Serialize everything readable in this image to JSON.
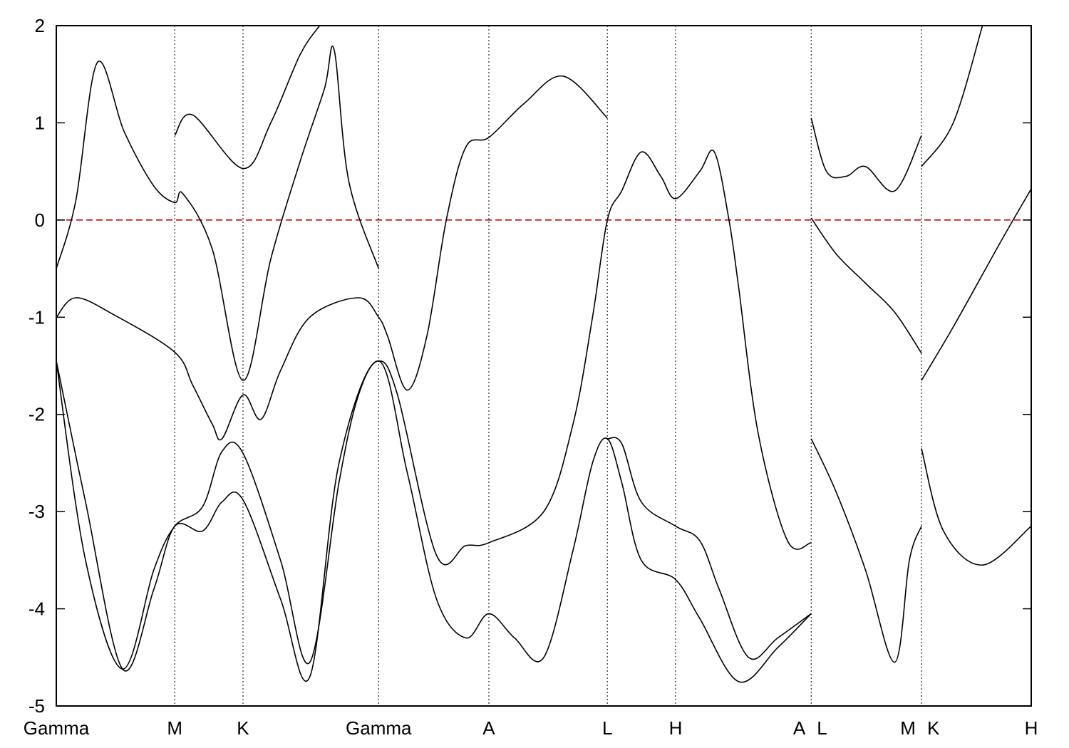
{
  "chart_data": {
    "type": "line",
    "title": "",
    "xlabel": "",
    "ylabel": "",
    "xlim": [
      0,
      1.0
    ],
    "ylim": [
      -5,
      2
    ],
    "yticks": [
      2,
      1,
      0,
      -1,
      -2,
      -3,
      -4,
      -5
    ],
    "grid": false,
    "legend": "none",
    "high_symmetry_points": [
      {
        "label": "Gamma",
        "x": 0.0
      },
      {
        "label": "M",
        "x": 0.1215
      },
      {
        "label": "K",
        "x": 0.1915
      },
      {
        "label": "Gamma",
        "x": 0.3306
      },
      {
        "label": "A",
        "x": 0.4437
      },
      {
        "label": "L",
        "x": 0.5652
      },
      {
        "label": "H",
        "x": 0.6352
      },
      {
        "label": "A",
        "x": 0.7743
      },
      {
        "label": "L",
        "x": 0.7743
      },
      {
        "label": "M",
        "x": 0.8874
      },
      {
        "label": "K",
        "x": 0.8874
      },
      {
        "label": "H",
        "x": 1.0
      }
    ],
    "fermi_level": {
      "y": 0,
      "color": "#cc0000",
      "style": "dashed"
    },
    "series": [
      {
        "values": [
          [
            0.0,
            -0.5
          ],
          [
            0.02,
            0.2
          ],
          [
            0.042,
            1.62
          ],
          [
            0.07,
            0.9
          ],
          [
            0.1,
            0.35
          ],
          [
            0.1215,
            0.18
          ],
          [
            0.13,
            0.27
          ],
          [
            0.16,
            -0.3
          ],
          [
            0.1915,
            -1.65
          ],
          [
            0.22,
            -0.4
          ],
          [
            0.25,
            0.6
          ],
          [
            0.275,
            1.35
          ],
          [
            0.285,
            1.75
          ],
          [
            0.3,
            0.4
          ],
          [
            0.3306,
            -0.5
          ]
        ]
      },
      {
        "values": [
          [
            0.0,
            -1.0
          ],
          [
            0.02,
            -0.8
          ],
          [
            0.06,
            -0.98
          ],
          [
            0.1215,
            -1.36
          ],
          [
            0.14,
            -1.7
          ],
          [
            0.16,
            -2.1
          ],
          [
            0.17,
            -2.25
          ],
          [
            0.1915,
            -1.8
          ],
          [
            0.21,
            -2.05
          ],
          [
            0.23,
            -1.55
          ],
          [
            0.26,
            -1.0
          ],
          [
            0.31,
            -0.8
          ],
          [
            0.3306,
            -1.0
          ],
          [
            0.34,
            -1.2
          ],
          [
            0.36,
            -1.75
          ],
          [
            0.38,
            -1.2
          ],
          [
            0.4,
            0.0
          ],
          [
            0.42,
            0.75
          ],
          [
            0.4437,
            0.85
          ],
          [
            0.48,
            1.2
          ],
          [
            0.52,
            1.48
          ],
          [
            0.5652,
            1.05
          ]
        ]
      },
      {
        "values": [
          [
            0.0,
            -1.45
          ],
          [
            0.03,
            -3.5
          ],
          [
            0.068,
            -4.62
          ],
          [
            0.1,
            -3.6
          ],
          [
            0.1215,
            -3.15
          ],
          [
            0.15,
            -2.95
          ],
          [
            0.17,
            -2.38
          ],
          [
            0.1915,
            -2.4
          ],
          [
            0.23,
            -3.5
          ],
          [
            0.26,
            -4.55
          ],
          [
            0.29,
            -2.7
          ],
          [
            0.31,
            -1.8
          ],
          [
            0.3306,
            -1.45
          ],
          [
            0.35,
            -1.8
          ],
          [
            0.39,
            -3.45
          ],
          [
            0.42,
            -3.35
          ],
          [
            0.4437,
            -3.32
          ],
          [
            0.5,
            -3.0
          ],
          [
            0.53,
            -2.1
          ],
          [
            0.55,
            -1.0
          ],
          [
            0.5652,
            0.0
          ],
          [
            0.58,
            0.3
          ],
          [
            0.6,
            0.7
          ],
          [
            0.62,
            0.45
          ],
          [
            0.6352,
            0.22
          ],
          [
            0.66,
            0.5
          ],
          [
            0.675,
            0.7
          ],
          [
            0.69,
            0.0
          ],
          [
            0.7,
            -0.7
          ],
          [
            0.72,
            -2.2
          ],
          [
            0.75,
            -3.3
          ],
          [
            0.7743,
            -3.32
          ]
        ]
      },
      {
        "values": [
          [
            0.0,
            -1.45
          ],
          [
            0.03,
            -2.9
          ],
          [
            0.068,
            -4.62
          ],
          [
            0.1,
            -3.8
          ],
          [
            0.1215,
            -3.15
          ],
          [
            0.15,
            -3.2
          ],
          [
            0.17,
            -2.9
          ],
          [
            0.1915,
            -2.88
          ],
          [
            0.23,
            -3.9
          ],
          [
            0.26,
            -4.7
          ],
          [
            0.29,
            -2.5
          ],
          [
            0.3306,
            -1.45
          ],
          [
            0.36,
            -2.6
          ],
          [
            0.39,
            -3.9
          ],
          [
            0.42,
            -4.3
          ],
          [
            0.4437,
            -4.05
          ],
          [
            0.47,
            -4.3
          ],
          [
            0.5,
            -4.5
          ],
          [
            0.53,
            -3.4
          ],
          [
            0.55,
            -2.5
          ],
          [
            0.5652,
            -2.25
          ],
          [
            0.58,
            -2.7
          ],
          [
            0.6,
            -3.5
          ],
          [
            0.6352,
            -3.7
          ],
          [
            0.66,
            -4.1
          ],
          [
            0.7,
            -4.75
          ],
          [
            0.74,
            -4.4
          ],
          [
            0.7743,
            -4.05
          ]
        ]
      },
      {
        "values": [
          [
            0.1215,
            0.87
          ],
          [
            0.14,
            1.08
          ],
          [
            0.1915,
            0.53
          ],
          [
            0.22,
            1.0
          ],
          [
            0.25,
            1.7
          ],
          [
            0.27,
            2.0
          ]
        ]
      },
      {
        "values": [
          [
            0.5652,
            -2.25
          ],
          [
            0.58,
            -2.3
          ],
          [
            0.6,
            -2.9
          ],
          [
            0.6352,
            -3.15
          ],
          [
            0.66,
            -3.3
          ],
          [
            0.68,
            -3.8
          ],
          [
            0.71,
            -4.5
          ],
          [
            0.74,
            -4.3
          ],
          [
            0.7743,
            -4.05
          ]
        ]
      },
      {
        "values": [
          [
            0.7743,
            1.05
          ],
          [
            0.79,
            0.5
          ],
          [
            0.81,
            0.45
          ],
          [
            0.83,
            0.55
          ],
          [
            0.86,
            0.3
          ],
          [
            0.8874,
            0.87
          ]
        ]
      },
      {
        "values": [
          [
            0.7743,
            0.02
          ],
          [
            0.8,
            -0.35
          ],
          [
            0.83,
            -0.65
          ],
          [
            0.86,
            -0.95
          ],
          [
            0.8874,
            -1.37
          ]
        ]
      },
      {
        "values": [
          [
            0.7743,
            -2.25
          ],
          [
            0.8,
            -2.8
          ],
          [
            0.83,
            -3.6
          ],
          [
            0.86,
            -4.55
          ],
          [
            0.875,
            -3.5
          ],
          [
            0.8874,
            -3.15
          ]
        ]
      },
      {
        "values": [
          [
            0.8874,
            -2.35
          ],
          [
            0.91,
            -3.2
          ],
          [
            0.95,
            -3.55
          ],
          [
            1.0,
            -3.15
          ]
        ]
      },
      {
        "values": [
          [
            0.8874,
            -1.65
          ],
          [
            0.92,
            -1.1
          ],
          [
            0.97,
            -0.2
          ],
          [
            1.0,
            0.32
          ]
        ]
      },
      {
        "values": [
          [
            0.8874,
            0.55
          ],
          [
            0.92,
            1.0
          ],
          [
            0.95,
            2.0
          ]
        ]
      }
    ]
  }
}
